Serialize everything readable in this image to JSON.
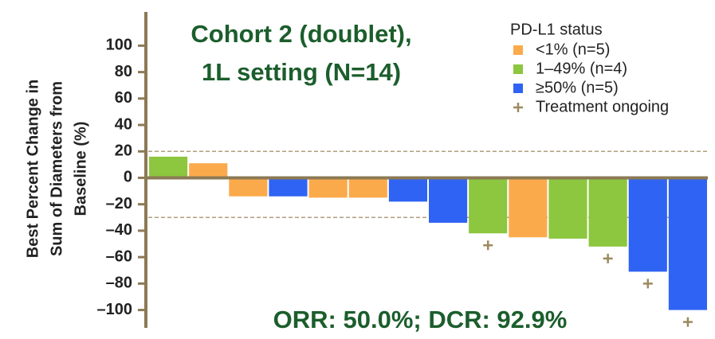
{
  "chart_data": {
    "type": "waterfall",
    "title": [
      "Cohort 2 (doublet),",
      "1L setting (N=14)"
    ],
    "annotation": "ORR: 50.0%; DCR: 92.9%",
    "y_label": [
      "Best Percent Change in",
      "Sum of Diameters from",
      "Baseline (%)"
    ],
    "legend_title": "PD-L1 status",
    "series": [
      {
        "name": "<1% (n=5)",
        "color": "#fbaa4b",
        "values": [
          null,
          11,
          -14,
          null,
          -15,
          -15,
          null,
          null,
          null,
          -45,
          null,
          null,
          null,
          null
        ]
      },
      {
        "name": "1–49% (n=4)",
        "color": "#8dc63f",
        "values": [
          16,
          null,
          null,
          null,
          null,
          null,
          null,
          null,
          -42,
          null,
          -46,
          -52,
          null,
          null
        ]
      },
      {
        "name": "≥50% (n=5)",
        "color": "#2f63f3",
        "values": [
          null,
          null,
          null,
          -14,
          null,
          null,
          -18,
          -34,
          null,
          null,
          null,
          null,
          -71,
          -100
        ]
      }
    ],
    "ongoing": {
      "name": "Treatment ongoing",
      "color": "#9c8a5e",
      "flags": [
        false,
        false,
        false,
        false,
        false,
        false,
        false,
        false,
        true,
        false,
        false,
        true,
        true,
        true
      ]
    },
    "reference_lines": [
      20,
      -30
    ],
    "ylim": [
      -113.5,
      125.5
    ],
    "yticks": [
      100,
      80,
      60,
      40,
      20,
      0,
      {
        "value": -20,
        "label": "–20"
      },
      {
        "value": -40,
        "label": "–40"
      },
      {
        "value": -60,
        "label": "–60"
      },
      {
        "value": -80,
        "label": "–80"
      },
      {
        "value": -100,
        "label": "–100"
      }
    ]
  }
}
